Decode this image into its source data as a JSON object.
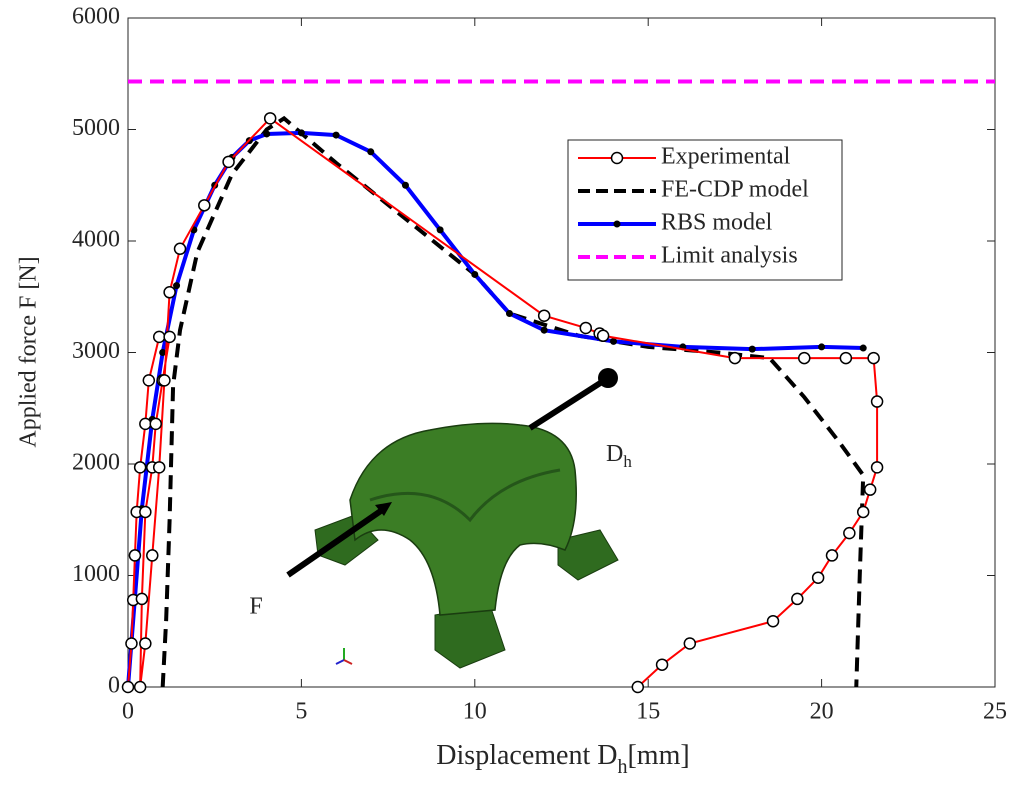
{
  "chart_data": {
    "type": "line",
    "xlabel": [
      "Displacement D",
      "h",
      "[mm]"
    ],
    "ylabel": "Applied force F [N]",
    "xlim": [
      0,
      25
    ],
    "xticks": [
      0,
      5,
      10,
      15,
      20,
      25
    ],
    "ylim": [
      0,
      6000
    ],
    "yticks": [
      0,
      1000,
      2000,
      3000,
      4000,
      5000,
      6000
    ],
    "legend_position": "upper right",
    "annotations": {
      "force": "F",
      "displacement": [
        "D",
        "h"
      ]
    },
    "series": [
      {
        "name": "Experimental",
        "color": "#ff0000",
        "style": "solid",
        "marker": "open-circle",
        "x": [
          0,
          0.1,
          0.15,
          0.2,
          0.25,
          0.35,
          0.5,
          0.6,
          0.9,
          1.2,
          1.0,
          0.8,
          0.7,
          0.5,
          0.4,
          0.35,
          0.5,
          0.7,
          0.9,
          1.05,
          1.2,
          1.5,
          2.2,
          2.9,
          4.1,
          12,
          13.2,
          13.6,
          13.7,
          17.5,
          19.5,
          20.7,
          21.5,
          21.6,
          21.6,
          21.4,
          21.2,
          20.8,
          20.3,
          19.9,
          19.3,
          18.6,
          16.2,
          15.4,
          14.7
        ],
        "values": [
          0,
          390,
          780,
          1180,
          1570,
          1970,
          2360,
          2750,
          3140,
          3140,
          2750,
          2360,
          1970,
          1570,
          790,
          0,
          390,
          1180,
          1970,
          2750,
          3540,
          3930,
          4320,
          4710,
          5100,
          3330,
          3220,
          3170,
          3150,
          2950,
          2950,
          2950,
          2950,
          2560,
          1970,
          1770,
          1570,
          1380,
          1180,
          980,
          790,
          590,
          390,
          200,
          0
        ]
      },
      {
        "name": "FE-CDP model",
        "color": "#000000",
        "style": "dashed",
        "marker": "none",
        "x": [
          1.0,
          1.1,
          1.2,
          1.3,
          1.5,
          2,
          3,
          4,
          4.5,
          6,
          8,
          10,
          11,
          13,
          15,
          17,
          18.5,
          19.5,
          20.5,
          21.2,
          21.1,
          21
        ],
        "values": [
          0,
          600,
          1500,
          2700,
          3200,
          3900,
          4600,
          5000,
          5100,
          4700,
          4200,
          3700,
          3350,
          3150,
          3050,
          3000,
          2950,
          2600,
          2200,
          1900,
          1000,
          0
        ]
      },
      {
        "name": "RBS model",
        "color": "#0000ff",
        "style": "solid",
        "marker": "dot",
        "x": [
          0,
          0.2,
          0.4,
          0.7,
          1.0,
          1.4,
          1.9,
          2.5,
          3,
          3.5,
          4,
          5,
          6,
          7,
          8,
          9,
          10,
          11,
          12,
          14,
          16,
          18,
          20,
          21.2
        ],
        "values": [
          0,
          800,
          1600,
          2400,
          3000,
          3600,
          4100,
          4500,
          4750,
          4900,
          4960,
          4970,
          4950,
          4800,
          4500,
          4100,
          3700,
          3350,
          3200,
          3100,
          3050,
          3030,
          3050,
          3040
        ]
      },
      {
        "name": "Limit analysis",
        "color": "#ff00ff",
        "style": "dashed",
        "marker": "none",
        "x": [
          0,
          25
        ],
        "values": [
          5430,
          5430
        ]
      }
    ]
  }
}
